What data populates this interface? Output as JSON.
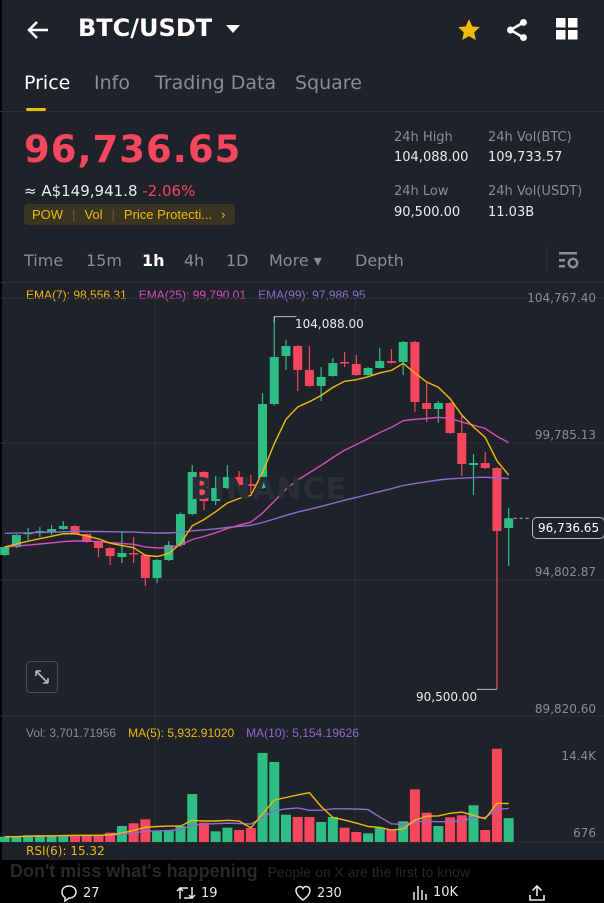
{
  "header": {
    "back_icon": "arrow-left-icon",
    "pair": "BTC/USDT",
    "dropdown_icon": "caret-down-icon",
    "star_icon": "star-icon",
    "share_icon": "share-icon",
    "grid_icon": "grid-icon",
    "star_color": "#f0b90b"
  },
  "tabs": [
    {
      "label": "Price",
      "active": true
    },
    {
      "label": "Info"
    },
    {
      "label": "Trading Data"
    },
    {
      "label": "Square"
    }
  ],
  "ticker": {
    "price": "96,736.65",
    "fiat": "≈ A$149,941.8",
    "change": "-2.06%",
    "tags": [
      "POW",
      "Vol",
      "Price Protecti..."
    ],
    "high_label": "24h High",
    "high": "104,088.00",
    "vol_btc_label": "24h Vol(BTC)",
    "vol_btc": "109,733.57",
    "low_label": "24h Low",
    "low": "90,500.00",
    "vol_usdt_label": "24h Vol(USDT)",
    "vol_usdt": "11.03B",
    "down_color": "#f6465d",
    "up_color": "#2ebd85"
  },
  "timeframes": [
    {
      "label": "Time"
    },
    {
      "label": "15m"
    },
    {
      "label": "1h",
      "active": true
    },
    {
      "label": "4h"
    },
    {
      "label": "1D"
    },
    {
      "label": "More ▾"
    },
    {
      "label": "Depth"
    }
  ],
  "indicators": {
    "ema7": "EMA(7): 98,556.31",
    "ema25": "EMA(25): 99,790.01",
    "ema99": "EMA(99): 97,986.95",
    "vol": "Vol: 3,701.71956",
    "ma5": "MA(5): 5,932.91020",
    "ma10": "MA(10): 5,154.19626",
    "rsi": "RSI(6): 15.32"
  },
  "price_axis": [
    "104,767.40",
    "99,785.13",
    "94,802.87",
    "89,820.60"
  ],
  "volume_axis": [
    "14.4K",
    "676"
  ],
  "annotations": {
    "high": "104,088.00",
    "low": "90,500.00",
    "last": "96,736.65"
  },
  "watermark": "BINANCE",
  "chart_data": {
    "type": "candlestick",
    "interval": "1h",
    "ylim": [
      89820.6,
      104767.4
    ],
    "candles_ohlc": [
      [
        95397,
        95720,
        95360,
        95688
      ],
      [
        95688,
        96160,
        95650,
        96126
      ],
      [
        96180,
        96381,
        95944,
        96210
      ],
      [
        96250,
        96418,
        96053,
        96272
      ],
      [
        96235,
        96491,
        96126,
        96345
      ],
      [
        96345,
        96636,
        96308,
        96454
      ],
      [
        96454,
        96480,
        96140,
        96162
      ],
      [
        96162,
        96180,
        95850,
        95871
      ],
      [
        95871,
        95900,
        95324,
        95652
      ],
      [
        95652,
        95680,
        95032,
        95360
      ],
      [
        95324,
        96235,
        95105,
        95470
      ],
      [
        95470,
        96053,
        95105,
        95434
      ],
      [
        95397,
        95430,
        94267,
        94558
      ],
      [
        94558,
        95250,
        94376,
        95214
      ],
      [
        95214,
        95907,
        95180,
        95761
      ],
      [
        95761,
        96950,
        95700,
        96892
      ],
      [
        96892,
        98678,
        96850,
        98423
      ],
      [
        98423,
        98450,
        97037,
        97366
      ],
      [
        97366,
        98277,
        97220,
        97840
      ],
      [
        97840,
        98678,
        97800,
        98241
      ],
      [
        98241,
        98459,
        97900,
        97949
      ],
      [
        97985,
        98314,
        97657,
        97913
      ],
      [
        97840,
        101303,
        97800,
        100902
      ],
      [
        100902,
        104088,
        100850,
        102616
      ],
      [
        102652,
        103235,
        102142,
        103017
      ],
      [
        103017,
        103050,
        101376,
        102142
      ],
      [
        102142,
        103017,
        101530,
        101559
      ],
      [
        101559,
        102251,
        101012,
        101887
      ],
      [
        101923,
        102579,
        101900,
        102397
      ],
      [
        102434,
        102798,
        102251,
        102397
      ],
      [
        102361,
        102689,
        101930,
        101960
      ],
      [
        101960,
        102250,
        101930,
        102215
      ],
      [
        102215,
        102944,
        102200,
        102470
      ],
      [
        102470,
        102908,
        102380,
        102397
      ],
      [
        102434,
        103200,
        101960,
        103163
      ],
      [
        103163,
        103200,
        100611,
        100975
      ],
      [
        100939,
        101668,
        100246,
        100720
      ],
      [
        100720,
        101012,
        100209,
        100939
      ],
      [
        100939,
        100970,
        99820,
        99845
      ],
      [
        99845,
        100501,
        98277,
        98715
      ],
      [
        98678,
        99079,
        97584,
        98751
      ],
      [
        98751,
        99152,
        98540,
        98569
      ],
      [
        98569,
        98600,
        90500,
        96272
      ],
      [
        96381,
        97110,
        94996,
        96736.65
      ]
    ],
    "volume": [
      820,
      820,
      1040,
      1040,
      1040,
      1040,
      1040,
      1040,
      1040,
      1440,
      2480,
      2900,
      3520,
      1700,
      1700,
      2480,
      7440,
      2990,
      1660,
      2220,
      1860,
      2170,
      13800,
      12400,
      4230,
      3880,
      3880,
      3100,
      3880,
      2220,
      1550,
      1350,
      2220,
      1860,
      3210,
      8170,
      4540,
      2480,
      3830,
      4140,
      5690,
      1860,
      14460,
      3701.72
    ],
    "colors": {
      "up": "#2ebd85",
      "down": "#f6465d",
      "ema7": "#f0b90b",
      "ema25": "#d44fbf",
      "ema99": "#8e6bd1"
    }
  },
  "footer": {
    "replies": "27",
    "reposts": "19",
    "likes": "230",
    "views": "10K",
    "overlay_title": "Don't miss what's happening",
    "overlay_sub": "People on X are the first to know"
  }
}
